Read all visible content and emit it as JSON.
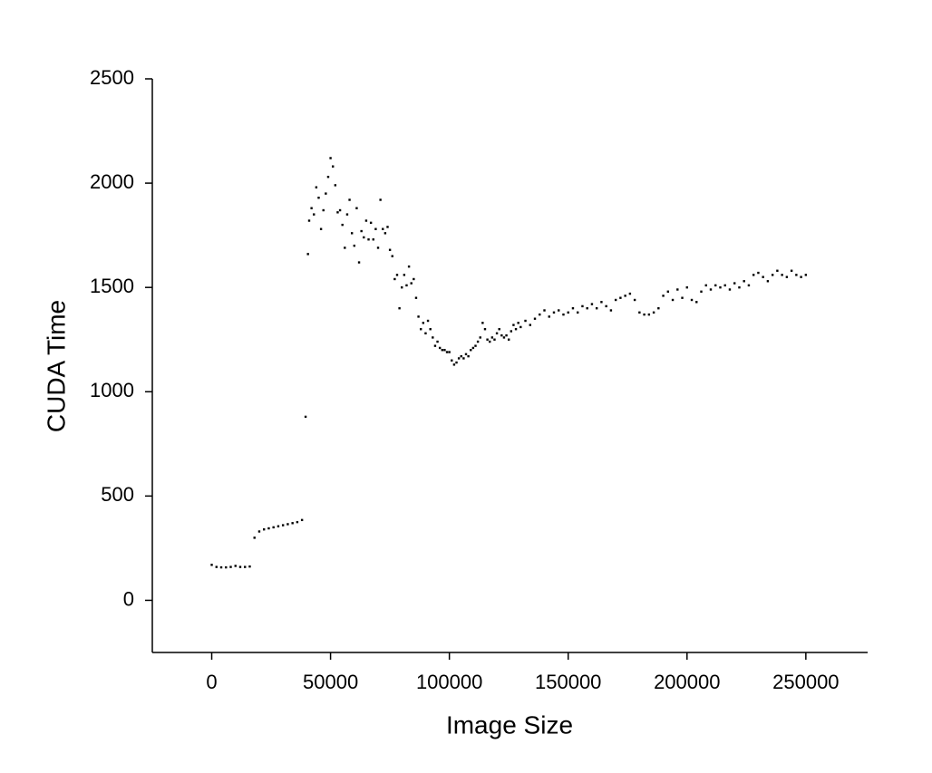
{
  "chart_data": {
    "type": "scatter",
    "xlabel": "Image Size",
    "ylabel": "CUDA Time",
    "color": "#000000",
    "xlim": [
      -25000,
      276000
    ],
    "ylim": [
      -250,
      2500
    ],
    "xticks": [
      0,
      50000,
      100000,
      150000,
      200000,
      250000
    ],
    "yticks": [
      0,
      500,
      1000,
      1500,
      2000,
      2500
    ],
    "x": [
      0,
      2000,
      4000,
      6000,
      8000,
      10000,
      12000,
      14000,
      16000,
      18000,
      20000,
      22000,
      24000,
      26000,
      28000,
      30000,
      32000,
      34000,
      36000,
      38000,
      39500,
      40500,
      41000,
      42000,
      43000,
      44000,
      45000,
      46000,
      47000,
      48000,
      49000,
      50000,
      51000,
      52000,
      53000,
      54000,
      55000,
      56000,
      57000,
      58000,
      59000,
      60000,
      61000,
      62000,
      63000,
      64000,
      65000,
      66000,
      67000,
      68000,
      69000,
      70000,
      71000,
      72000,
      73000,
      74000,
      75000,
      76000,
      77000,
      78000,
      79000,
      80000,
      81000,
      82000,
      83000,
      84000,
      85000,
      86000,
      87000,
      88000,
      89000,
      90000,
      91000,
      92000,
      93000,
      94000,
      95000,
      96000,
      97000,
      98000,
      99000,
      100000,
      101000,
      102000,
      103000,
      104000,
      105000,
      106000,
      107000,
      108000,
      109000,
      110000,
      111000,
      112000,
      113000,
      114000,
      115000,
      116000,
      117000,
      118000,
      119000,
      120000,
      121000,
      122000,
      123000,
      124000,
      125000,
      126000,
      127000,
      128000,
      129000,
      130000,
      132000,
      134000,
      136000,
      138000,
      140000,
      142000,
      144000,
      146000,
      148000,
      150000,
      152000,
      154000,
      156000,
      158000,
      160000,
      162000,
      164000,
      166000,
      168000,
      170000,
      172000,
      174000,
      176000,
      178000,
      180000,
      182000,
      184000,
      186000,
      188000,
      190000,
      192000,
      194000,
      196000,
      198000,
      200000,
      202000,
      204000,
      206000,
      208000,
      210000,
      212000,
      214000,
      216000,
      218000,
      220000,
      222000,
      224000,
      226000,
      228000,
      230000,
      232000,
      234000,
      236000,
      238000,
      240000,
      242000,
      244000,
      246000,
      248000,
      250000
    ],
    "values": [
      170,
      160,
      158,
      158,
      160,
      165,
      160,
      160,
      162,
      300,
      330,
      340,
      345,
      350,
      355,
      360,
      365,
      370,
      375,
      385,
      880,
      1660,
      1820,
      1880,
      1850,
      1980,
      1930,
      1780,
      1870,
      1950,
      2030,
      2120,
      2080,
      1990,
      1860,
      1870,
      1800,
      1690,
      1850,
      1920,
      1760,
      1700,
      1880,
      1620,
      1770,
      1740,
      1820,
      1730,
      1810,
      1730,
      1780,
      1690,
      1920,
      1780,
      1760,
      1790,
      1680,
      1650,
      1540,
      1560,
      1400,
      1500,
      1560,
      1510,
      1600,
      1520,
      1540,
      1450,
      1360,
      1300,
      1330,
      1280,
      1340,
      1300,
      1260,
      1220,
      1240,
      1210,
      1200,
      1200,
      1190,
      1190,
      1150,
      1130,
      1140,
      1160,
      1170,
      1160,
      1180,
      1170,
      1200,
      1210,
      1220,
      1240,
      1260,
      1330,
      1300,
      1250,
      1240,
      1260,
      1250,
      1280,
      1300,
      1270,
      1260,
      1270,
      1250,
      1290,
      1320,
      1300,
      1330,
      1310,
      1340,
      1320,
      1350,
      1370,
      1390,
      1360,
      1380,
      1390,
      1370,
      1380,
      1400,
      1380,
      1410,
      1400,
      1420,
      1400,
      1430,
      1410,
      1390,
      1440,
      1450,
      1460,
      1470,
      1440,
      1380,
      1370,
      1370,
      1380,
      1400,
      1460,
      1480,
      1440,
      1490,
      1450,
      1500,
      1440,
      1430,
      1480,
      1510,
      1490,
      1510,
      1500,
      1510,
      1490,
      1520,
      1500,
      1530,
      1510,
      1560,
      1570,
      1550,
      1530,
      1560,
      1580,
      1560,
      1550,
      1580,
      1560,
      1550,
      1560
    ]
  }
}
